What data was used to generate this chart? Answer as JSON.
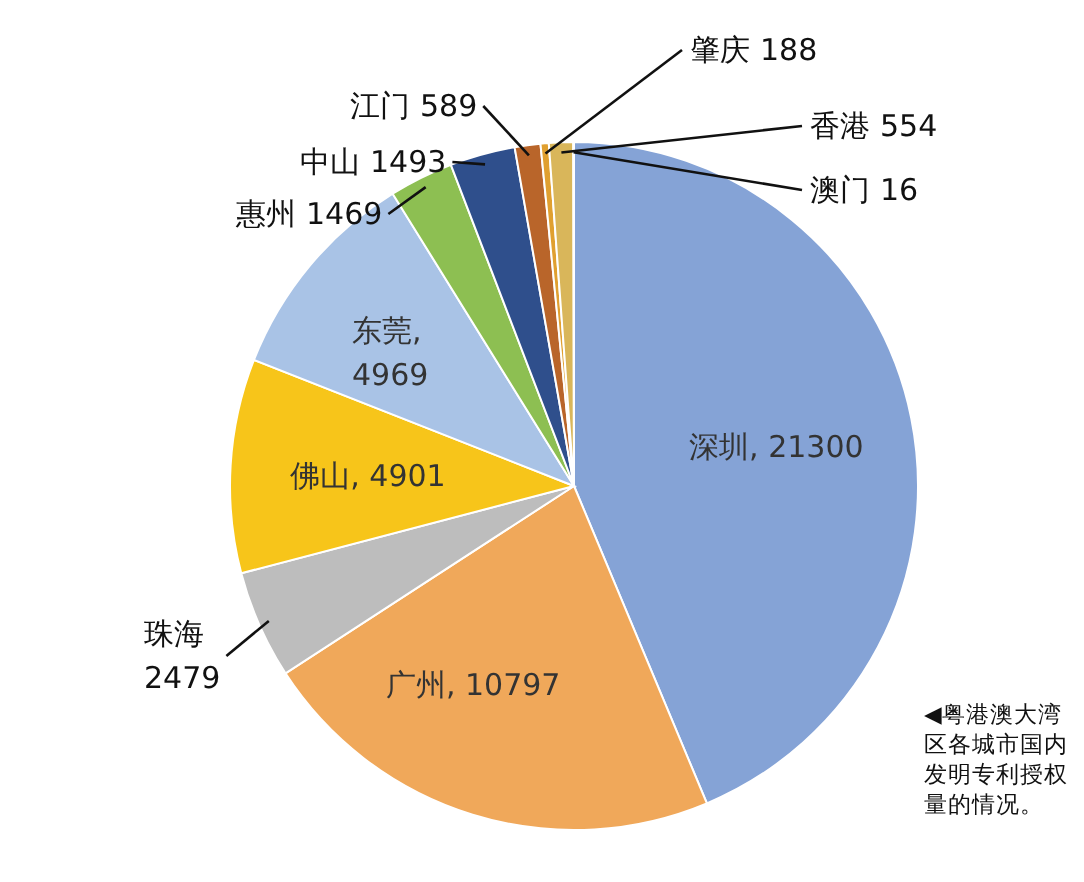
{
  "chart_data": {
    "type": "pie",
    "categories": [
      "深圳",
      "广州",
      "珠海",
      "佛山",
      "东莞",
      "惠州",
      "中山",
      "江门",
      "肇庆",
      "香港",
      "澳门"
    ],
    "values": [
      21300,
      10797,
      2479,
      4901,
      4969,
      1469,
      1493,
      589,
      188,
      554,
      16
    ],
    "colors": [
      "#85a3d6",
      "#f0a85a",
      "#bdbdbd",
      "#f7c51a",
      "#a9c3e6",
      "#8dbf52",
      "#2f4f8c",
      "#b9652a",
      "#e0a030",
      "#d9b65a",
      "#c98a3a"
    ],
    "value_labels": [
      ", 21300",
      ", 10797",
      "2479",
      ", 4901",
      ",\n4969",
      "1469",
      "1493",
      "589",
      "188",
      "554",
      "16"
    ],
    "annotations": [
      "◀粤港澳大湾区各城市国内发明专利授权量的情况。"
    ]
  }
}
